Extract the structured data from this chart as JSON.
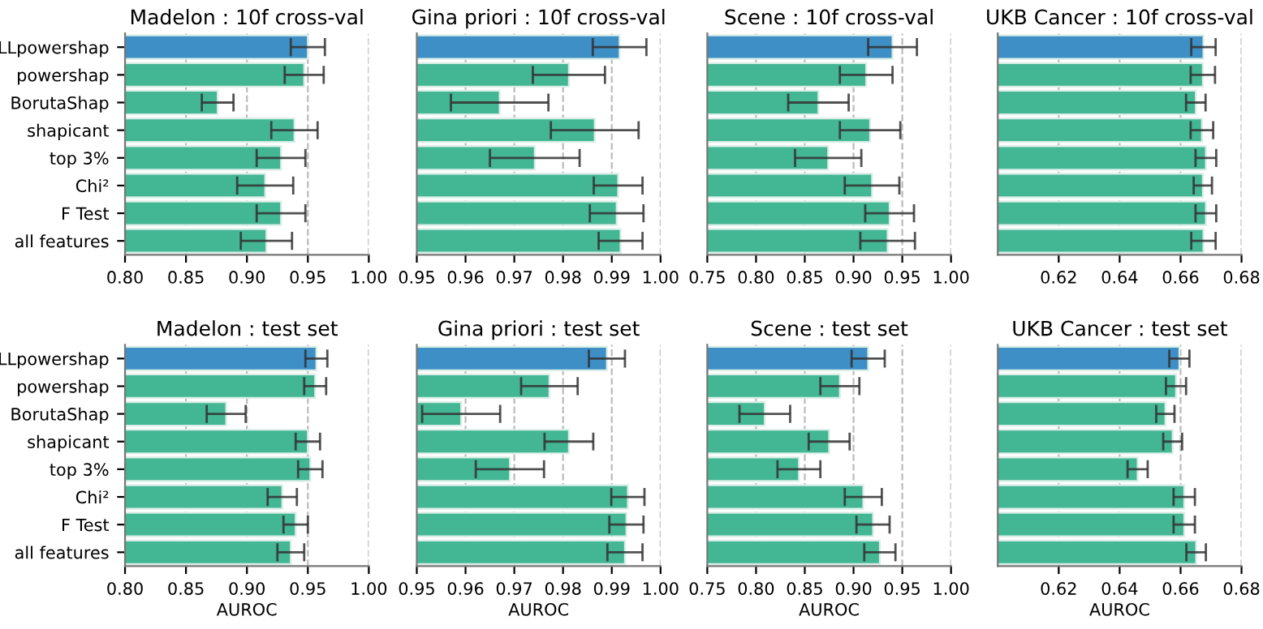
{
  "chart_data": [
    {
      "type": "bar",
      "orientation": "horizontal",
      "title": "Madelon : 10f cross-val",
      "categories": [
        "LLpowershap",
        "powershap",
        "BorutaShap",
        "shapicant",
        "top 3%",
        "Chi²",
        "F Test",
        "all features"
      ],
      "values": [
        0.95,
        0.947,
        0.876,
        0.939,
        0.928,
        0.915,
        0.928,
        0.916
      ],
      "errors": [
        0.014,
        0.016,
        0.013,
        0.019,
        0.02,
        0.023,
        0.02,
        0.021
      ],
      "colors": [
        "#3d8fc6",
        "#43b694",
        "#43b694",
        "#43b694",
        "#43b694",
        "#43b694",
        "#43b694",
        "#43b694"
      ],
      "xlim": [
        0.8,
        1.0
      ],
      "xticks": [
        {
          "value": 0.8,
          "label": "0.80"
        },
        {
          "value": 0.85,
          "label": "0.85"
        },
        {
          "value": 0.9,
          "label": "0.90"
        },
        {
          "value": 0.95,
          "label": "0.95"
        },
        {
          "value": 1.0,
          "label": "1.00"
        }
      ],
      "grid": "x"
    },
    {
      "type": "bar",
      "orientation": "horizontal",
      "title": "Gina priori : 10f cross-val",
      "categories": [
        null,
        null,
        null,
        null,
        null,
        null,
        null,
        null
      ],
      "values": [
        0.9916,
        0.9812,
        0.967,
        0.9865,
        0.9742,
        0.9913,
        0.991,
        0.9918
      ],
      "errors": [
        0.0055,
        0.0074,
        0.01,
        0.009,
        0.0092,
        0.005,
        0.0055,
        0.0045
      ],
      "colors": [
        "#3d8fc6",
        "#43b694",
        "#43b694",
        "#43b694",
        "#43b694",
        "#43b694",
        "#43b694",
        "#43b694"
      ],
      "xlim": [
        0.95,
        1.0
      ],
      "xticks": [
        0.95,
        0.96,
        0.97,
        0.98,
        0.99,
        {
          "value": 1.0,
          "label": "1.00"
        }
      ],
      "grid": "x",
      "tick_labels": "x"
    },
    {
      "type": "bar",
      "orientation": "horizontal",
      "title": "Scene : 10f cross-val",
      "categories": [
        null,
        null,
        null,
        null,
        null,
        null,
        null,
        null
      ],
      "values": [
        0.94,
        0.913,
        0.864,
        0.917,
        0.874,
        0.919,
        0.937,
        0.935
      ],
      "errors": [
        0.025,
        0.027,
        0.031,
        0.031,
        0.034,
        0.028,
        0.025,
        0.028
      ],
      "colors": [
        "#3d8fc6",
        "#43b694",
        "#43b694",
        "#43b694",
        "#43b694",
        "#43b694",
        "#43b694",
        "#43b694"
      ],
      "xlim": [
        0.75,
        1.0
      ],
      "xticks": [
        0.75,
        {
          "value": 0.8,
          "label": "0.80"
        },
        0.85,
        {
          "value": 0.9,
          "label": "0.90"
        },
        0.95,
        {
          "value": 1.0,
          "label": "1.00"
        }
      ],
      "grid": "x",
      "tick_labels": "x"
    },
    {
      "type": "bar",
      "orientation": "horizontal",
      "title": "UKB Cancer : 10f cross-val",
      "categories": [
        null,
        null,
        null,
        null,
        null,
        null,
        null,
        null
      ],
      "values": [
        0.6675,
        0.6673,
        0.665,
        0.667,
        0.6683,
        0.6673,
        0.6683,
        0.6675
      ],
      "errors": [
        0.004,
        0.004,
        0.0032,
        0.0037,
        0.0034,
        0.003,
        0.0034,
        0.004
      ],
      "colors": [
        "#3d8fc6",
        "#43b694",
        "#43b694",
        "#43b694",
        "#43b694",
        "#43b694",
        "#43b694",
        "#43b694"
      ],
      "xlim": [
        0.6,
        0.68
      ],
      "xticks": [
        0.62,
        0.64,
        0.66,
        0.68
      ],
      "grid": "x",
      "tick_labels": "x"
    },
    {
      "type": "bar",
      "orientation": "horizontal",
      "title": "Madelon : test set",
      "xlabel": "AUROC",
      "categories": [
        "LLpowershap",
        "powershap",
        "BorutaShap",
        "shapicant",
        "top 3%",
        "Chi²",
        "F Test",
        "all features"
      ],
      "values": [
        0.957,
        0.956,
        0.883,
        0.95,
        0.952,
        0.929,
        0.94,
        0.936
      ],
      "errors": [
        0.009,
        0.009,
        0.016,
        0.01,
        0.01,
        0.012,
        0.01,
        0.011
      ],
      "colors": [
        "#3d8fc6",
        "#43b694",
        "#43b694",
        "#43b694",
        "#43b694",
        "#43b694",
        "#43b694",
        "#43b694"
      ],
      "xlim": [
        0.8,
        1.0
      ],
      "xticks": [
        {
          "value": 0.8,
          "label": "0.80"
        },
        {
          "value": 0.85,
          "label": "0.85"
        },
        {
          "value": 0.9,
          "label": "0.90"
        },
        {
          "value": 0.95,
          "label": "0.95"
        },
        {
          "value": 1.0,
          "label": "1.00"
        }
      ],
      "grid": "x"
    },
    {
      "type": "bar",
      "orientation": "horizontal",
      "title": "Gina priori : test set",
      "xlabel": "AUROC",
      "categories": [
        null,
        null,
        null,
        null,
        null,
        null,
        null,
        null
      ],
      "values": [
        0.989,
        0.9772,
        0.9591,
        0.9812,
        0.9691,
        0.9933,
        0.993,
        0.9927
      ],
      "errors": [
        0.0037,
        0.0058,
        0.008,
        0.005,
        0.007,
        0.0034,
        0.0035,
        0.0036
      ],
      "colors": [
        "#3d8fc6",
        "#43b694",
        "#43b694",
        "#43b694",
        "#43b694",
        "#43b694",
        "#43b694",
        "#43b694"
      ],
      "xlim": [
        0.95,
        1.0
      ],
      "xticks": [
        0.95,
        0.96,
        0.97,
        0.98,
        0.99,
        {
          "value": 1.0,
          "label": "1.00"
        }
      ],
      "grid": "x",
      "tick_labels": "x"
    },
    {
      "type": "bar",
      "orientation": "horizontal",
      "title": "Scene : test set",
      "xlabel": "AUROC",
      "categories": [
        null,
        null,
        null,
        null,
        null,
        null,
        null,
        null
      ],
      "values": [
        0.915,
        0.886,
        0.809,
        0.875,
        0.844,
        0.91,
        0.92,
        0.927
      ],
      "errors": [
        0.017,
        0.02,
        0.026,
        0.021,
        0.022,
        0.019,
        0.017,
        0.016
      ],
      "colors": [
        "#3d8fc6",
        "#43b694",
        "#43b694",
        "#43b694",
        "#43b694",
        "#43b694",
        "#43b694",
        "#43b694"
      ],
      "xlim": [
        0.75,
        1.0
      ],
      "xticks": [
        0.75,
        {
          "value": 0.8,
          "label": "0.80"
        },
        0.85,
        {
          "value": 0.9,
          "label": "0.90"
        },
        0.95,
        {
          "value": 1.0,
          "label": "1.00"
        }
      ],
      "grid": "x",
      "tick_labels": "x"
    },
    {
      "type": "bar",
      "orientation": "horizontal",
      "title": "UKB Cancer : test set",
      "xlabel": "AUROC",
      "categories": [
        null,
        null,
        null,
        null,
        null,
        null,
        null,
        null
      ],
      "values": [
        0.6596,
        0.6585,
        0.655,
        0.6574,
        0.6459,
        0.6612,
        0.6612,
        0.6651
      ],
      "errors": [
        0.0033,
        0.0033,
        0.003,
        0.0031,
        0.0033,
        0.0035,
        0.0035,
        0.0032
      ],
      "colors": [
        "#3d8fc6",
        "#43b694",
        "#43b694",
        "#43b694",
        "#43b694",
        "#43b694",
        "#43b694",
        "#43b694"
      ],
      "xlim": [
        0.6,
        0.68
      ],
      "xticks": [
        0.62,
        0.64,
        0.66,
        0.68
      ],
      "grid": "x",
      "tick_labels": "x"
    }
  ]
}
